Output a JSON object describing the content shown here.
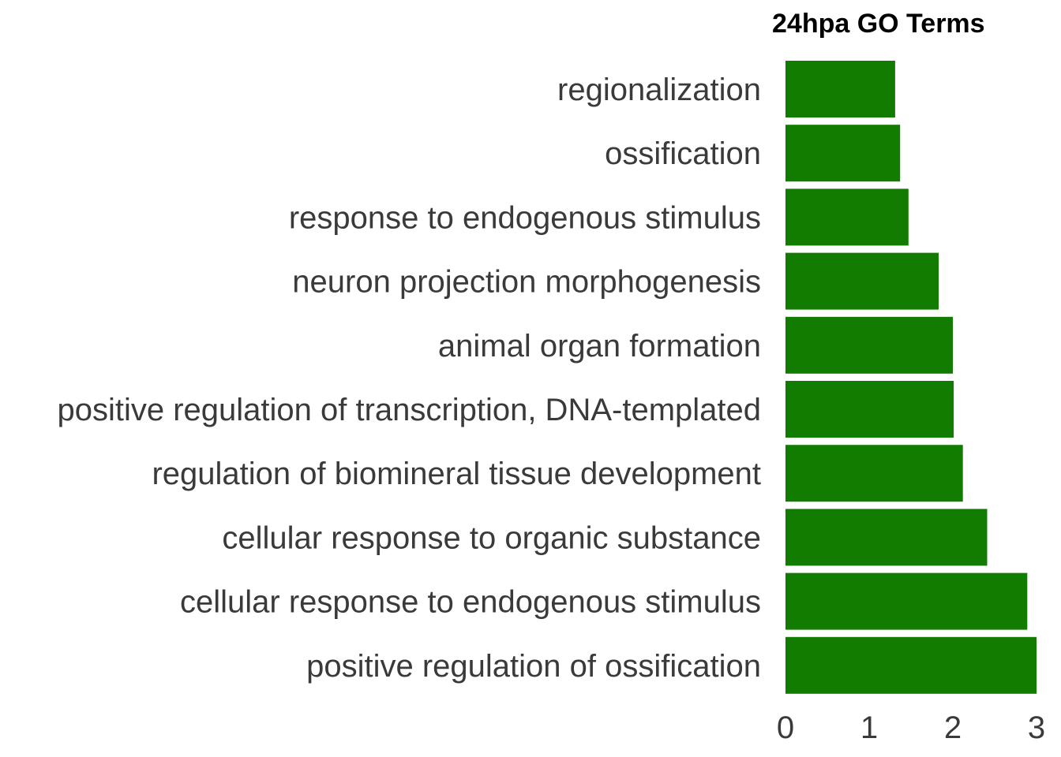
{
  "chart_data": {
    "type": "bar",
    "orientation": "horizontal",
    "title": "24hpa GO Terms",
    "xlabel": "",
    "ylabel": "",
    "categories": [
      "regionalization",
      "ossification",
      "response to endogenous stimulus",
      "neuron projection morphogenesis",
      "animal organ formation",
      "positive regulation of transcription, DNA-templated",
      "regulation of biomineral tissue development",
      "cellular response to organic substance",
      "cellular response to endogenous stimulus",
      "positive regulation of ossification"
    ],
    "values": [
      1.31,
      1.37,
      1.47,
      1.83,
      2.0,
      2.01,
      2.12,
      2.41,
      2.89,
      3.0
    ],
    "xlim": [
      0,
      3
    ],
    "xticks": [
      "0",
      "1",
      "2",
      "3"
    ],
    "bar_color": "#117c00",
    "grid": false,
    "legend": "none"
  }
}
